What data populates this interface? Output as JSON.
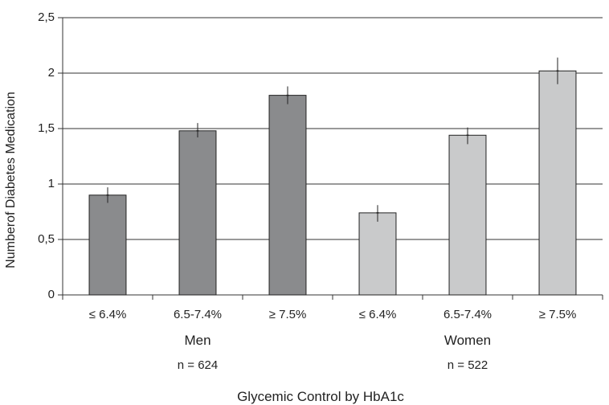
{
  "chart_data": {
    "type": "bar",
    "xlabel": "Glycemic Control by HbA1c",
    "ylabel": "Numberof Diabetes Medication",
    "ylim": [
      0,
      2.5
    ],
    "yticks": [
      "0",
      "0,5",
      "1",
      "1,5",
      "2",
      "2,5"
    ],
    "grid": true,
    "groups": [
      {
        "name": "Men",
        "n_label": "n = 624",
        "color": "#8a8b8d",
        "categories": [
          "≤ 6.4%",
          "6.5-7.4%",
          "≥ 7.5%"
        ],
        "values": [
          0.9,
          1.48,
          1.8
        ],
        "error_low": [
          0.83,
          1.42,
          1.72
        ],
        "error_high": [
          0.97,
          1.55,
          1.88
        ]
      },
      {
        "name": "Women",
        "n_label": "n = 522",
        "color": "#c9cacb",
        "categories": [
          "≤ 6.4%",
          "6.5-7.4%",
          "≥ 7.5%"
        ],
        "values": [
          0.74,
          1.44,
          2.02
        ],
        "error_low": [
          0.66,
          1.36,
          1.9
        ],
        "error_high": [
          0.81,
          1.51,
          2.14
        ]
      }
    ]
  }
}
